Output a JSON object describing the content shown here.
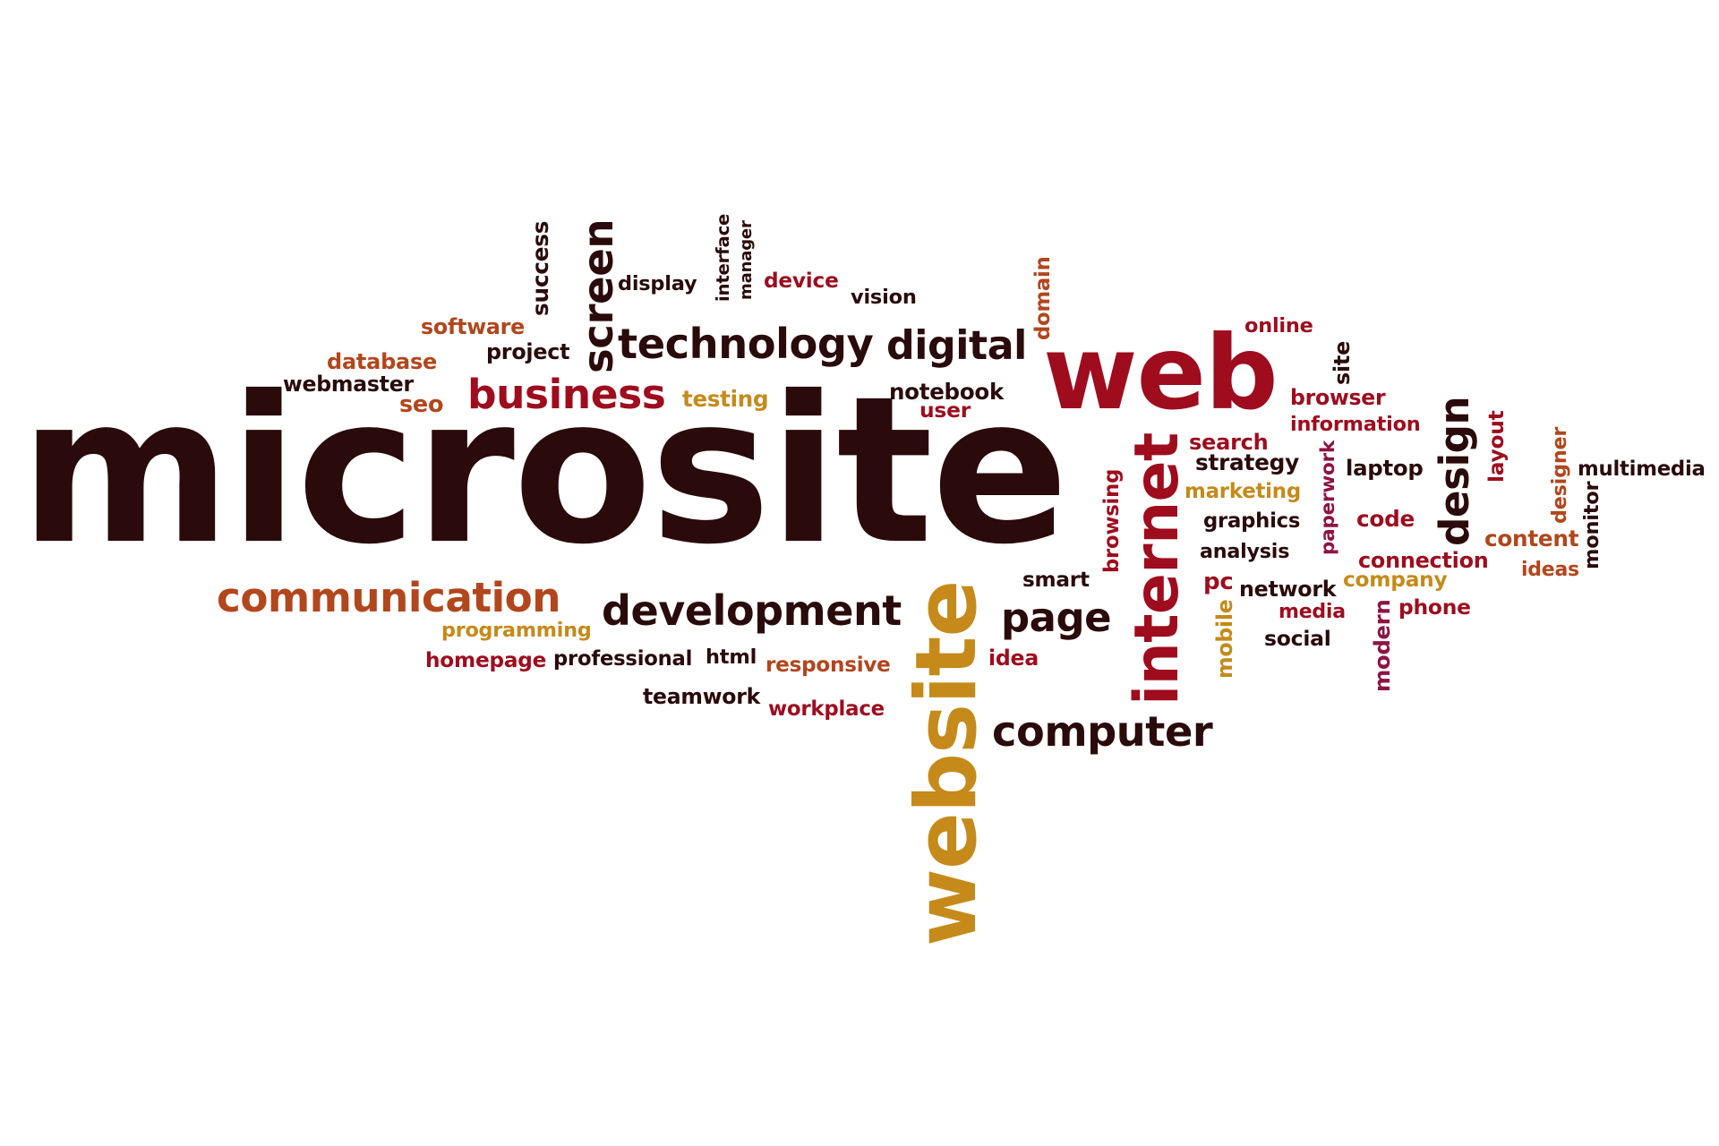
{
  "colors": {
    "background": "#ffffff",
    "dark_brown": "#2a0a0a",
    "crimson": "#9e0c1e",
    "burnt_orange": "#b2461c",
    "gold": "#c58a19",
    "magenta": "#8e1343"
  },
  "words": [
    {
      "id": "microsite",
      "text": "microsite",
      "color": "dark_brown",
      "vertical": false
    },
    {
      "id": "web",
      "text": "web",
      "color": "crimson",
      "vertical": false
    },
    {
      "id": "website",
      "text": "website",
      "color": "gold",
      "vertical": true
    },
    {
      "id": "internet",
      "text": "internet",
      "color": "crimson",
      "vertical": true
    },
    {
      "id": "technology",
      "text": "technology",
      "color": "dark_brown",
      "vertical": false
    },
    {
      "id": "digital",
      "text": "digital",
      "color": "dark_brown",
      "vertical": false
    },
    {
      "id": "communication",
      "text": "communication",
      "color": "burnt_orange",
      "vertical": false
    },
    {
      "id": "development",
      "text": "development",
      "color": "dark_brown",
      "vertical": false
    },
    {
      "id": "computer",
      "text": "computer",
      "color": "dark_brown",
      "vertical": false
    },
    {
      "id": "page",
      "text": "page",
      "color": "dark_brown",
      "vertical": false
    },
    {
      "id": "business",
      "text": "business",
      "color": "crimson",
      "vertical": false
    },
    {
      "id": "screen",
      "text": "screen",
      "color": "dark_brown",
      "vertical": true
    },
    {
      "id": "design",
      "text": "design",
      "color": "dark_brown",
      "vertical": true
    },
    {
      "id": "success",
      "text": "success",
      "color": "dark_brown",
      "vertical": true
    },
    {
      "id": "display",
      "text": "display",
      "color": "dark_brown",
      "vertical": false
    },
    {
      "id": "interface",
      "text": "interface",
      "color": "dark_brown",
      "vertical": true
    },
    {
      "id": "manager",
      "text": "manager",
      "color": "dark_brown",
      "vertical": true
    },
    {
      "id": "device",
      "text": "device",
      "color": "crimson",
      "vertical": false
    },
    {
      "id": "vision",
      "text": "vision",
      "color": "dark_brown",
      "vertical": false
    },
    {
      "id": "domain",
      "text": "domain",
      "color": "burnt_orange",
      "vertical": true
    },
    {
      "id": "online",
      "text": "online",
      "color": "crimson",
      "vertical": false
    },
    {
      "id": "site",
      "text": "site",
      "color": "dark_brown",
      "vertical": true
    },
    {
      "id": "software",
      "text": "software",
      "color": "burnt_orange",
      "vertical": false
    },
    {
      "id": "project",
      "text": "project",
      "color": "dark_brown",
      "vertical": false
    },
    {
      "id": "database",
      "text": "database",
      "color": "burnt_orange",
      "vertical": false
    },
    {
      "id": "webmaster",
      "text": "webmaster",
      "color": "dark_brown",
      "vertical": false
    },
    {
      "id": "seo",
      "text": "seo",
      "color": "burnt_orange",
      "vertical": false
    },
    {
      "id": "testing",
      "text": "testing",
      "color": "gold",
      "vertical": false
    },
    {
      "id": "notebook",
      "text": "notebook",
      "color": "dark_brown",
      "vertical": false
    },
    {
      "id": "user",
      "text": "user",
      "color": "crimson",
      "vertical": false
    },
    {
      "id": "browser",
      "text": "browser",
      "color": "crimson",
      "vertical": false
    },
    {
      "id": "information",
      "text": "information",
      "color": "crimson",
      "vertical": false
    },
    {
      "id": "search",
      "text": "search",
      "color": "crimson",
      "vertical": false
    },
    {
      "id": "strategy",
      "text": "strategy",
      "color": "dark_brown",
      "vertical": false
    },
    {
      "id": "marketing",
      "text": "marketing",
      "color": "gold",
      "vertical": false
    },
    {
      "id": "graphics",
      "text": "graphics",
      "color": "dark_brown",
      "vertical": false
    },
    {
      "id": "analysis",
      "text": "analysis",
      "color": "dark_brown",
      "vertical": false
    },
    {
      "id": "paperwork",
      "text": "paperwork",
      "color": "magenta",
      "vertical": true
    },
    {
      "id": "laptop",
      "text": "laptop",
      "color": "dark_brown",
      "vertical": false
    },
    {
      "id": "code",
      "text": "code",
      "color": "crimson",
      "vertical": false
    },
    {
      "id": "connection",
      "text": "connection",
      "color": "crimson",
      "vertical": false
    },
    {
      "id": "company",
      "text": "company",
      "color": "gold",
      "vertical": false
    },
    {
      "id": "layout",
      "text": "layout",
      "color": "crimson",
      "vertical": true
    },
    {
      "id": "designer",
      "text": "designer",
      "color": "burnt_orange",
      "vertical": true
    },
    {
      "id": "multimedia",
      "text": "multimedia",
      "color": "dark_brown",
      "vertical": false
    },
    {
      "id": "monitor",
      "text": "monitor",
      "color": "dark_brown",
      "vertical": true
    },
    {
      "id": "content",
      "text": "content",
      "color": "burnt_orange",
      "vertical": false
    },
    {
      "id": "ideas",
      "text": "ideas",
      "color": "burnt_orange",
      "vertical": false
    },
    {
      "id": "browsing",
      "text": "browsing",
      "color": "crimson",
      "vertical": true
    },
    {
      "id": "smart",
      "text": "smart",
      "color": "dark_brown",
      "vertical": false
    },
    {
      "id": "pc",
      "text": "pc",
      "color": "crimson",
      "vertical": false
    },
    {
      "id": "network",
      "text": "network",
      "color": "dark_brown",
      "vertical": false
    },
    {
      "id": "media",
      "text": "media",
      "color": "crimson",
      "vertical": false
    },
    {
      "id": "social",
      "text": "social",
      "color": "dark_brown",
      "vertical": false
    },
    {
      "id": "phone",
      "text": "phone",
      "color": "crimson",
      "vertical": false
    },
    {
      "id": "modern",
      "text": "modern",
      "color": "magenta",
      "vertical": true
    },
    {
      "id": "mobile",
      "text": "mobile",
      "color": "gold",
      "vertical": true
    },
    {
      "id": "programming",
      "text": "programming",
      "color": "gold",
      "vertical": false
    },
    {
      "id": "homepage",
      "text": "homepage",
      "color": "crimson",
      "vertical": false
    },
    {
      "id": "professional",
      "text": "professional",
      "color": "dark_brown",
      "vertical": false
    },
    {
      "id": "html",
      "text": "html",
      "color": "dark_brown",
      "vertical": false
    },
    {
      "id": "responsive",
      "text": "responsive",
      "color": "burnt_orange",
      "vertical": false
    },
    {
      "id": "idea",
      "text": "idea",
      "color": "crimson",
      "vertical": false
    },
    {
      "id": "teamwork",
      "text": "teamwork",
      "color": "dark_brown",
      "vertical": false
    },
    {
      "id": "workplace",
      "text": "workplace",
      "color": "crimson",
      "vertical": false
    }
  ]
}
